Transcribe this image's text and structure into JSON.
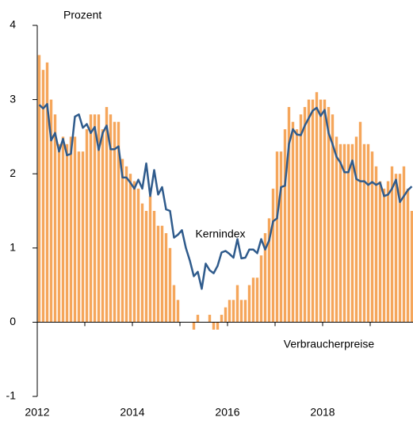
{
  "chart_data": {
    "type": "bar_line",
    "y_label": "Prozent",
    "categories": [
      "2012",
      null,
      null,
      null,
      null,
      null,
      null,
      null,
      null,
      null,
      null,
      null,
      null,
      null,
      null,
      null,
      null,
      null,
      null,
      null,
      null,
      null,
      null,
      null,
      "2014",
      null,
      null,
      null,
      null,
      null,
      null,
      null,
      null,
      null,
      null,
      null,
      null,
      null,
      null,
      null,
      null,
      null,
      null,
      null,
      null,
      null,
      null,
      null,
      "2016",
      null,
      null,
      null,
      null,
      null,
      null,
      null,
      null,
      null,
      null,
      null,
      null,
      null,
      null,
      null,
      null,
      null,
      null,
      null,
      null,
      null,
      null,
      null,
      "2018",
      null,
      null,
      null,
      null,
      null,
      null,
      null,
      null,
      null,
      null,
      null,
      null,
      null,
      null,
      null,
      null,
      null,
      null,
      null,
      null,
      null,
      null
    ],
    "series": [
      {
        "name": "Verbraucherpreise",
        "kind": "bar",
        "color": "#f5a65b",
        "values": [
          3.6,
          3.4,
          3.5,
          3.0,
          2.8,
          2.4,
          2.5,
          2.4,
          2.5,
          2.5,
          2.3,
          2.3,
          2.6,
          2.8,
          2.8,
          2.8,
          2.6,
          2.9,
          2.8,
          2.7,
          2.7,
          2.2,
          2.1,
          2.0,
          1.9,
          1.8,
          1.6,
          1.5,
          1.7,
          1.5,
          1.3,
          1.3,
          1.2,
          1.0,
          0.5,
          0.3,
          0.0,
          0.0,
          0.0,
          -0.1,
          0.1,
          0.0,
          0.0,
          0.1,
          -0.1,
          -0.1,
          0.1,
          0.2,
          0.3,
          0.3,
          0.5,
          0.3,
          0.3,
          0.5,
          0.6,
          0.6,
          0.9,
          1.2,
          1.4,
          1.8,
          2.3,
          2.3,
          2.6,
          2.9,
          2.7,
          2.6,
          2.8,
          2.9,
          3.0,
          3.0,
          3.1,
          3.0,
          3.0,
          2.9,
          2.8,
          2.5,
          2.4,
          2.4,
          2.4,
          2.4,
          2.5,
          2.7,
          2.4,
          2.4,
          2.3,
          2.1,
          1.9,
          1.8,
          1.9,
          2.1,
          2.0,
          2.0,
          2.1,
          1.8,
          1.5
        ]
      },
      {
        "name": "Kernindex",
        "kind": "line",
        "color": "#2f5b8c",
        "values": [
          2.93,
          2.88,
          2.94,
          2.45,
          2.55,
          2.3,
          2.47,
          2.25,
          2.27,
          2.77,
          2.8,
          2.62,
          2.67,
          2.55,
          2.63,
          2.32,
          2.55,
          2.65,
          2.33,
          2.33,
          2.37,
          1.95,
          1.95,
          1.88,
          1.8,
          1.92,
          1.8,
          2.14,
          1.7,
          2.05,
          1.72,
          1.82,
          1.52,
          1.5,
          1.14,
          1.18,
          1.24,
          1.0,
          0.83,
          0.62,
          0.68,
          0.45,
          0.79,
          0.7,
          0.66,
          0.76,
          0.94,
          0.96,
          0.92,
          0.87,
          1.12,
          0.86,
          0.87,
          0.98,
          0.98,
          0.93,
          1.12,
          0.98,
          1.1,
          1.36,
          1.4,
          1.82,
          1.84,
          2.4,
          2.6,
          2.53,
          2.52,
          2.65,
          2.75,
          2.85,
          2.89,
          2.78,
          2.86,
          2.55,
          2.4,
          2.23,
          2.15,
          2.02,
          2.02,
          2.18,
          1.93,
          1.9,
          1.9,
          1.85,
          1.89,
          1.85,
          1.88,
          1.7,
          1.72,
          1.8,
          1.92,
          1.62,
          1.7,
          1.78,
          1.83
        ]
      }
    ],
    "ylim": [
      -1,
      4
    ],
    "yticks": [
      -1,
      0,
      1,
      2,
      3,
      4
    ],
    "grid": false
  }
}
